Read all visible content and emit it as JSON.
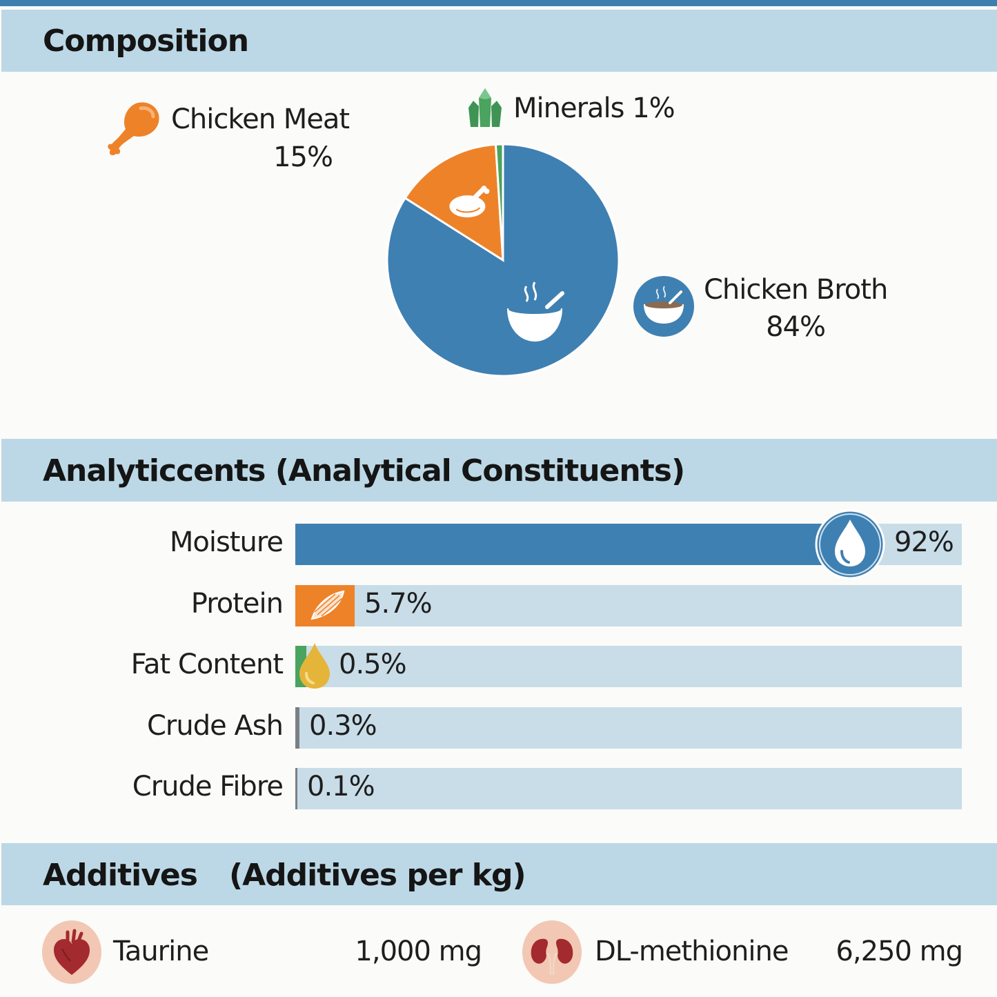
{
  "colors": {
    "broth": "#3f80b2",
    "meat": "#ee8229",
    "minerals": "#4aa35e",
    "band": "#bcd8e6",
    "track": "#c8dde8",
    "heart": "#a32a2e",
    "pinkbg": "#f2c7b3"
  },
  "composition": {
    "title": "Composition",
    "meat_label": "Chicken Meat",
    "meat_pct": "15%",
    "minerals_label": "Minerals 1%",
    "broth_label": "Chicken Broth",
    "broth_pct": "84%"
  },
  "chart_data": [
    {
      "type": "pie",
      "title": "Composition",
      "categories": [
        "Chicken Broth",
        "Chicken Meat",
        "Minerals"
      ],
      "values": [
        84,
        15,
        1
      ],
      "unit": "%"
    },
    {
      "type": "bar",
      "orientation": "horizontal",
      "title": "Analyticcents (Analytical Constituents)",
      "categories": [
        "Moisture",
        "Protein",
        "Fat Content",
        "Crude Ash",
        "Crude Fibre"
      ],
      "values": [
        92,
        5.7,
        0.5,
        0.3,
        0.1
      ],
      "unit": "%",
      "xlim": [
        0,
        100
      ]
    }
  ],
  "analytical": {
    "title": "Analyticcents  (Analytical Constituents)",
    "rows": [
      {
        "label": "Moisture",
        "value": "92%",
        "pct": 92,
        "color": "#3f80b2",
        "icon": "water-drop-icon"
      },
      {
        "label": "Protein",
        "value": "5.7%",
        "pct": 5.7,
        "color": "#ee8229",
        "icon": "muscle-icon"
      },
      {
        "label": "Fat Content",
        "value": "0.5%",
        "pct": 0.5,
        "color": "#4aa35e",
        "icon": "oil-drop-icon"
      },
      {
        "label": "Crude Ash",
        "value": "0.3%",
        "pct": 0.3,
        "color": "#7a7f86",
        "icon": ""
      },
      {
        "label": "Crude Fibre",
        "value": "0.1%",
        "pct": 0.1,
        "color": "#7a7f86",
        "icon": ""
      }
    ]
  },
  "additives": {
    "title": "Additives",
    "subtitle": "(Additives per kg)",
    "items": [
      {
        "name": "Taurine",
        "amount": "1,000 mg",
        "icon": "heart-icon"
      },
      {
        "name": "DL-methionine",
        "amount": "6,250 mg",
        "icon": "kidney-icon"
      }
    ]
  }
}
